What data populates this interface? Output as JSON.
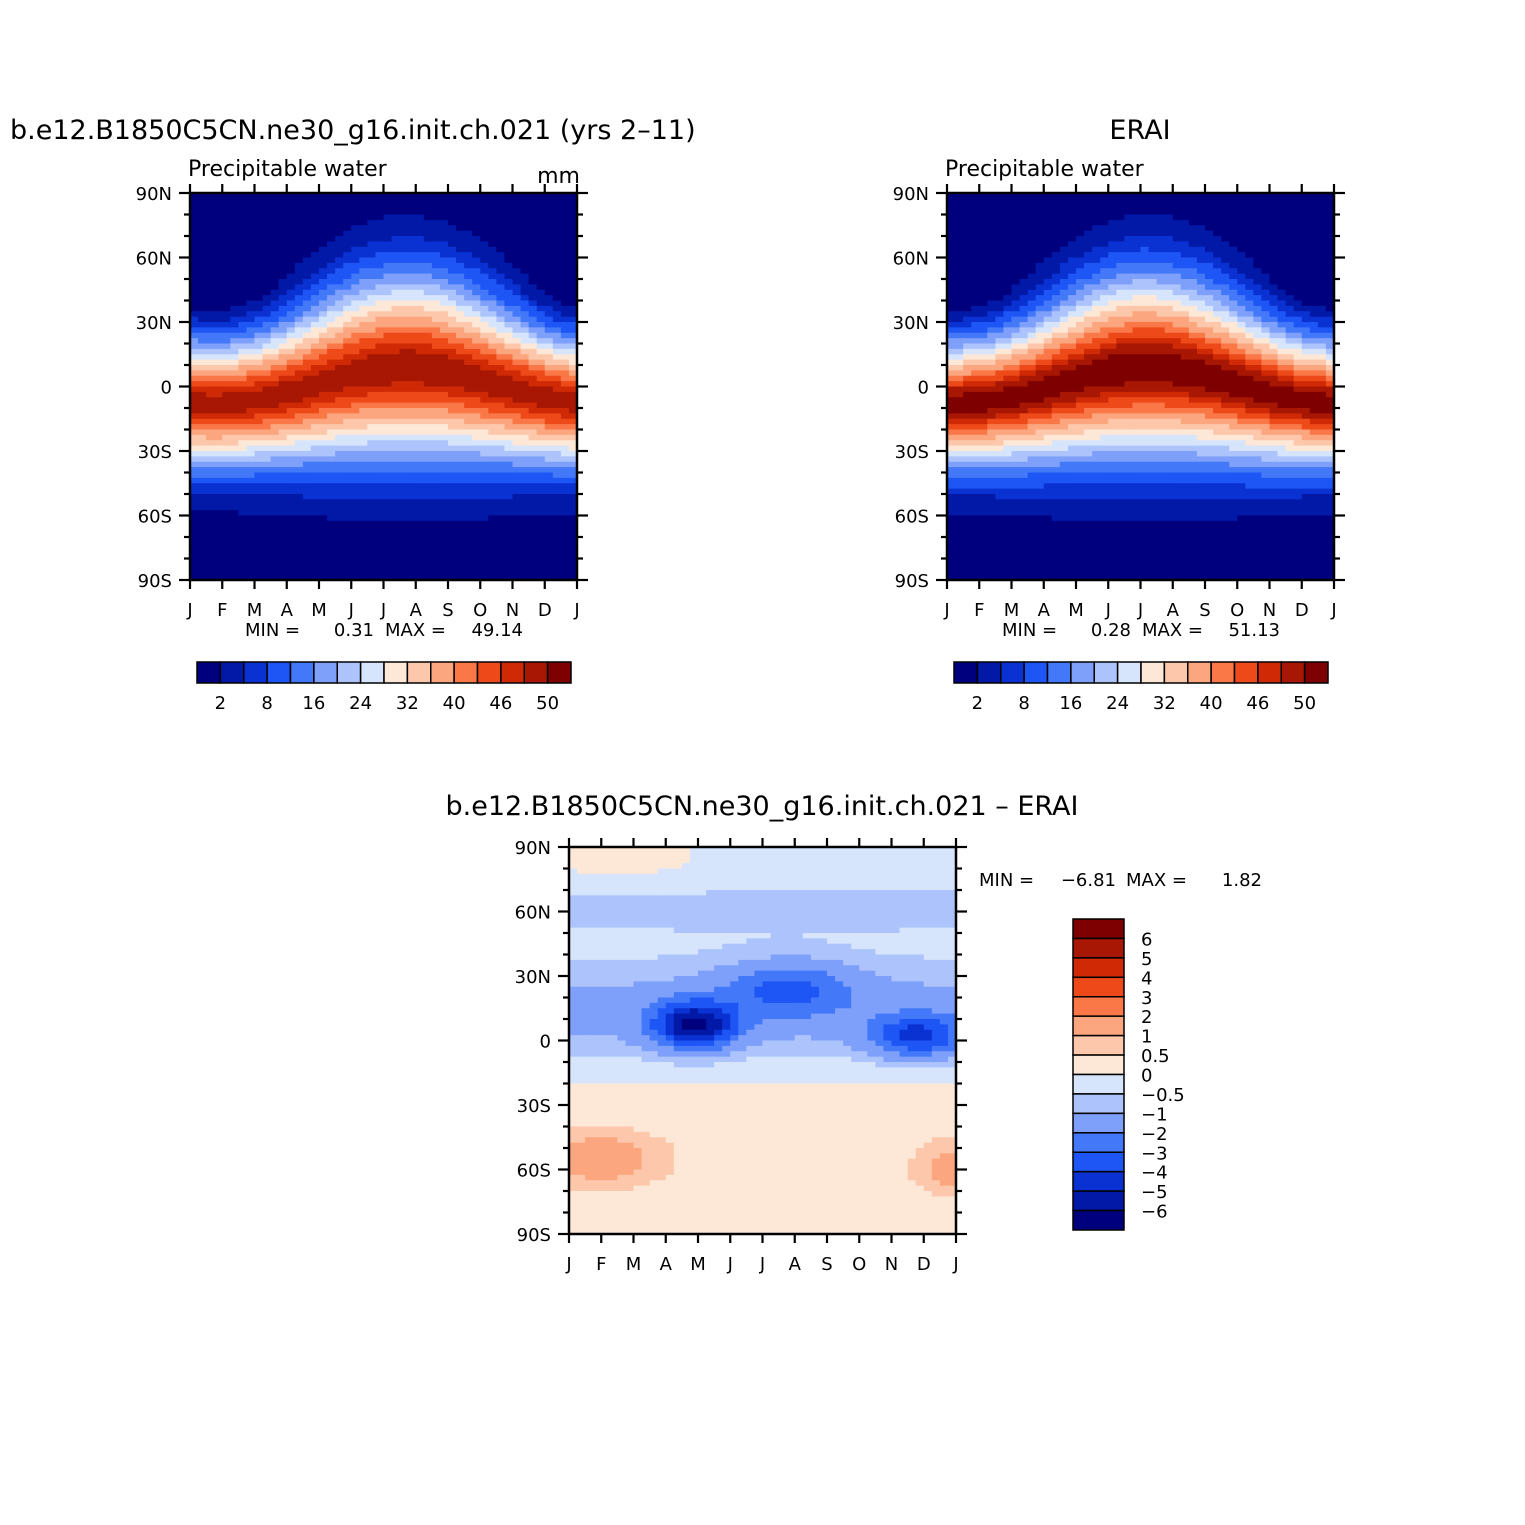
{
  "chart_data": [
    {
      "type": "heatmap",
      "id": "model",
      "title": "b.e12.B1850C5CN.ne30_g16.init.ch.021 (yrs 2–11)",
      "subtitle_left": "Precipitable water",
      "subtitle_right": "mm",
      "x_ticks": [
        "J",
        "F",
        "M",
        "A",
        "M",
        "J",
        "J",
        "A",
        "S",
        "O",
        "N",
        "D",
        "J"
      ],
      "y_ticks": [
        "90N",
        "60N",
        "30N",
        "0",
        "30S",
        "60S",
        "90S"
      ],
      "ylim": [
        -90,
        90
      ],
      "stats_min_label": "MIN =",
      "stats_min": "0.31",
      "stats_max_label": "MAX =",
      "stats_max": "49.14",
      "colorbar_labels": [
        "2",
        "8",
        "16",
        "24",
        "32",
        "40",
        "46",
        "50"
      ],
      "peak_month": 6.7,
      "peak_lat": 8,
      "peak_value": 49.14,
      "min_value": 0.31
    },
    {
      "type": "heatmap",
      "id": "obs",
      "title": "ERAI",
      "subtitle_left": "Precipitable water",
      "x_ticks": [
        "J",
        "F",
        "M",
        "A",
        "M",
        "J",
        "J",
        "A",
        "S",
        "O",
        "N",
        "D",
        "J"
      ],
      "y_ticks": [
        "90N",
        "60N",
        "30N",
        "0",
        "30S",
        "60S",
        "90S"
      ],
      "ylim": [
        -90,
        90
      ],
      "stats_min_label": "MIN =",
      "stats_min": "0.28",
      "stats_max_label": "MAX =",
      "stats_max": "51.13",
      "colorbar_labels": [
        "2",
        "8",
        "16",
        "24",
        "32",
        "40",
        "46",
        "50"
      ],
      "peak_month": 6.2,
      "peak_lat": 8,
      "peak_value": 51.13,
      "min_value": 0.28
    },
    {
      "type": "heatmap",
      "id": "diff",
      "title": "b.e12.B1850C5CN.ne30_g16.init.ch.021 – ERAI",
      "x_ticks": [
        "J",
        "F",
        "M",
        "A",
        "M",
        "J",
        "J",
        "A",
        "S",
        "O",
        "N",
        "D",
        "J"
      ],
      "y_ticks": [
        "90N",
        "60N",
        "30N",
        "0",
        "30S",
        "60S",
        "90S"
      ],
      "ylim": [
        -90,
        90
      ],
      "stats_min_label": "MIN =",
      "stats_min": "−6.81",
      "stats_max_label": "MAX =",
      "stats_max": "1.82",
      "colorbar_labels": [
        "6",
        "5",
        "4",
        "3",
        "2",
        "1",
        "0.5",
        "0",
        "−0.5",
        "−1",
        "−2",
        "−3",
        "−4",
        "−5",
        "−6"
      ],
      "min_value": -6.81,
      "max_value": 1.82
    }
  ],
  "colors": {
    "abs_palette": [
      "#00007f",
      "#0218a6",
      "#0a32d2",
      "#1e55f5",
      "#4379f9",
      "#7ea0fa",
      "#acc4fb",
      "#d6e5fc",
      "#fde8d7",
      "#fcc7aa",
      "#fba67e",
      "#fa7848",
      "#ee4a19",
      "#cf2a05",
      "#a81703",
      "#7e0000"
    ],
    "diff_palette": [
      "#00007f",
      "#0218a6",
      "#0a32d2",
      "#1e55f5",
      "#4379f9",
      "#7ea0fa",
      "#acc4fb",
      "#d6e5fc",
      "#fde8d7",
      "#fcc7aa",
      "#fba67e",
      "#fa7848",
      "#ee4a19",
      "#cf2a05",
      "#a81703",
      "#7e0000"
    ]
  }
}
